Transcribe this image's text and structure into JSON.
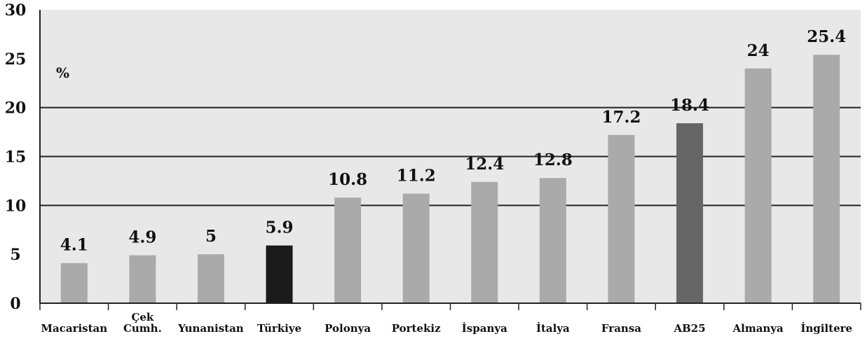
{
  "chart_data": {
    "type": "bar",
    "ylabel": "%",
    "ylim": [
      0,
      30
    ],
    "yticks": [
      0,
      5,
      10,
      15,
      20,
      25,
      30
    ],
    "grid": "horizontal at 10, 15, 20",
    "categories": [
      [
        "Macaristan"
      ],
      [
        "Çek",
        "Cumh."
      ],
      [
        "Yunanistan"
      ],
      [
        "Türkiye"
      ],
      [
        "Polonya"
      ],
      [
        "Portekiz"
      ],
      [
        "İspanya"
      ],
      [
        "İtalya"
      ],
      [
        "Fransa"
      ],
      [
        "AB25"
      ],
      [
        "Almanya"
      ],
      [
        "İngiltere"
      ]
    ],
    "values": [
      4.1,
      4.9,
      5,
      5.9,
      10.8,
      11.2,
      12.4,
      12.8,
      17.2,
      18.4,
      24,
      25.4
    ],
    "value_labels": [
      "4.1",
      "4.9",
      "5",
      "5.9",
      "10.8",
      "11.2",
      "12.4",
      "12.8",
      "17.2",
      "18.4",
      "24",
      "25.4"
    ],
    "colors": [
      "#aaaaaa",
      "#aaaaaa",
      "#aaaaaa",
      "#1a1a1a",
      "#aaaaaa",
      "#aaaaaa",
      "#aaaaaa",
      "#aaaaaa",
      "#aaaaaa",
      "#666666",
      "#aaaaaa",
      "#aaaaaa"
    ]
  }
}
